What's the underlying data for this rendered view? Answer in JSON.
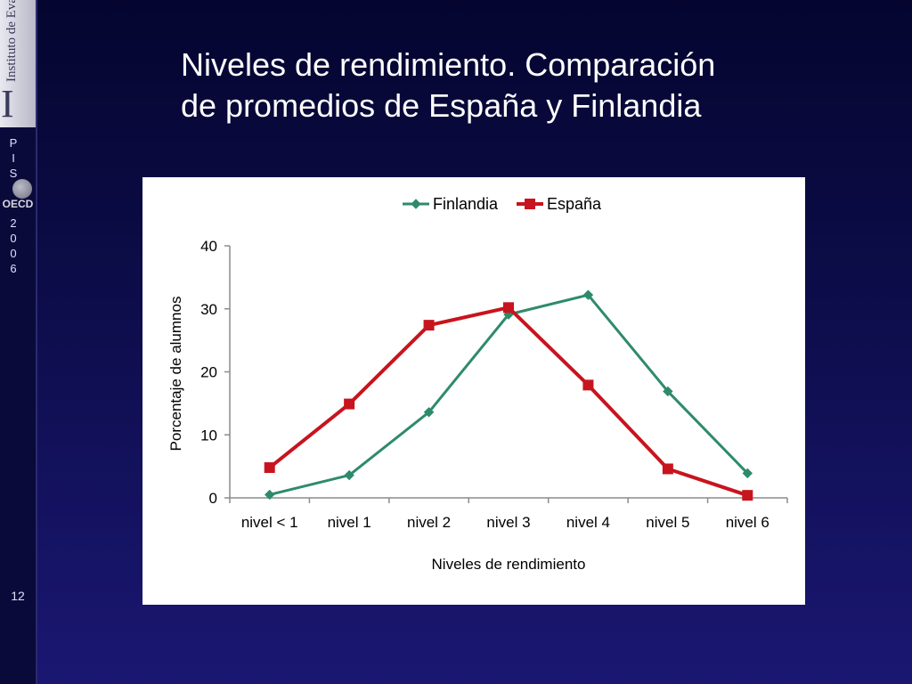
{
  "slide": {
    "title_line1": "Niveles de rendimiento. Comparación",
    "title_line2": "de promedios de España y Finlandia",
    "page_number": "12"
  },
  "sidebar": {
    "logo_text": "Instituto de Evaluación",
    "logo_initial": "I",
    "program_letters": [
      "P",
      "I",
      "S"
    ],
    "organization": "OECD",
    "year_digits": [
      "2",
      "0",
      "0",
      "6"
    ]
  },
  "colors": {
    "finlandia": "#2e8b6a",
    "espana": "#c8141e",
    "background": "#0c0c48"
  },
  "chart_data": {
    "type": "line",
    "categories": [
      "nivel < 1",
      "nivel 1",
      "nivel 2",
      "nivel 3",
      "nivel 4",
      "nivel 5",
      "nivel 6"
    ],
    "series": [
      {
        "name": "Finlandia",
        "values": [
          0.5,
          3.6,
          13.6,
          29.1,
          32.2,
          16.9,
          3.9
        ],
        "marker": "diamond"
      },
      {
        "name": "España",
        "values": [
          4.8,
          14.9,
          27.4,
          30.2,
          17.9,
          4.6,
          0.4
        ],
        "marker": "square"
      }
    ],
    "title": "",
    "xlabel": "Niveles de rendimiento",
    "ylabel": "Porcentaje de alumnos",
    "ylim": [
      0,
      40
    ],
    "yticks": [
      0,
      10,
      20,
      30,
      40
    ],
    "grid": false,
    "legend": "top"
  }
}
